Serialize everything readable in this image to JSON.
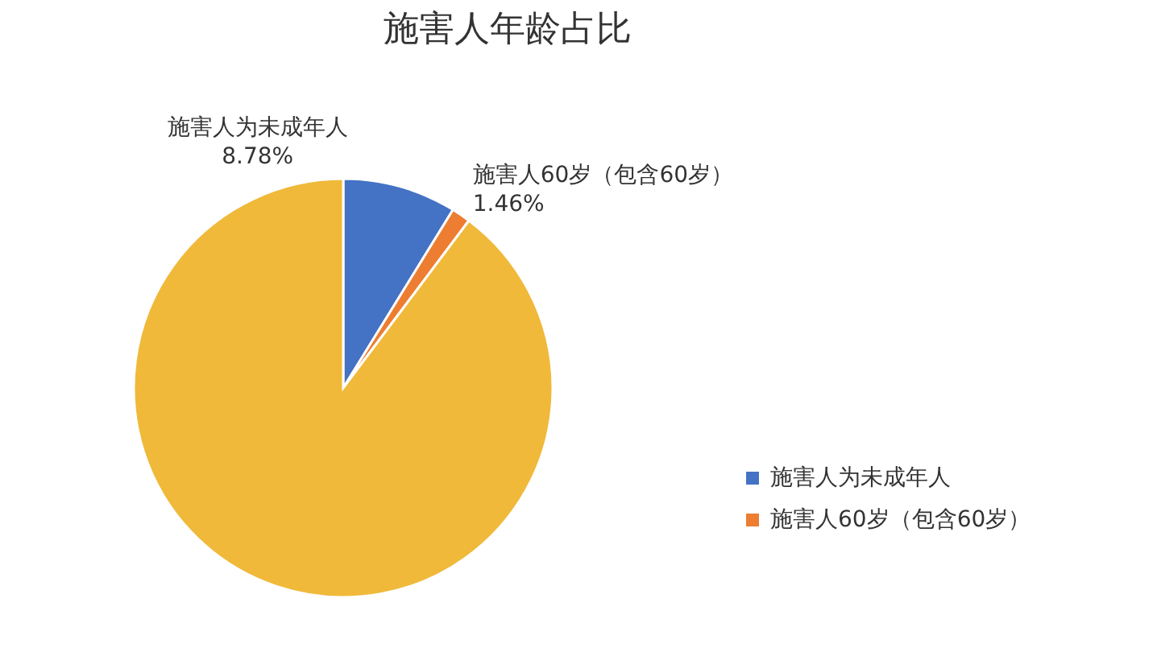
{
  "chart_data": {
    "type": "pie",
    "title": "施害人年龄占比",
    "categories": [
      "施害人为未成年人",
      "施害人60岁（包含60岁）",
      null
    ],
    "values": [
      8.78,
      1.46,
      89.76
    ],
    "colors": [
      "#4472c4",
      "#ed7d31",
      "#f0b93a"
    ],
    "value_labels": [
      "8.78%",
      "1.46%",
      null
    ],
    "legend": "bottom right"
  }
}
